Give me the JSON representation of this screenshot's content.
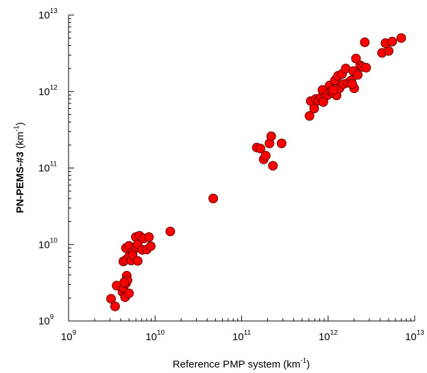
{
  "chart_data": {
    "type": "scatter",
    "title": "",
    "x_scale": "log",
    "y_scale": "log",
    "xlim": [
      1000000000.0,
      10000000000000.0
    ],
    "ylim": [
      1000000000.0,
      10000000000000.0
    ],
    "grid": false,
    "x_ticks": [
      {
        "base": "10",
        "exp": "9",
        "value": 1000000000.0
      },
      {
        "base": "10",
        "exp": "10",
        "value": 10000000000.0
      },
      {
        "base": "10",
        "exp": "11",
        "value": 100000000000.0
      },
      {
        "base": "10",
        "exp": "12",
        "value": 1000000000000.0
      },
      {
        "base": "10",
        "exp": "13",
        "value": 10000000000000.0
      }
    ],
    "y_ticks": [
      {
        "base": "10",
        "exp": "9",
        "value": 1000000000.0
      },
      {
        "base": "10",
        "exp": "10",
        "value": 10000000000.0
      },
      {
        "base": "10",
        "exp": "11",
        "value": 100000000000.0
      },
      {
        "base": "10",
        "exp": "12",
        "value": 1000000000000.0
      },
      {
        "base": "10",
        "exp": "13",
        "value": 10000000000000.0
      }
    ],
    "xlabel": {
      "text": "Reference PMP system (km",
      "sup": "-1",
      "suffix": ")"
    },
    "ylabel": {
      "text": "PN-PEMS-#3",
      "unit": " (km",
      "sup": "-1",
      "suffix": ")"
    },
    "series": [
      {
        "color": "#ff0000",
        "edge_color": "#5a0000",
        "points": [
          [
            3100000000.0,
            1950000000.0
          ],
          [
            3450000000.0,
            1550000000.0
          ],
          [
            3600000000.0,
            2900000000.0
          ],
          [
            4200000000.0,
            2400000000.0
          ],
          [
            4300000000.0,
            2700000000.0
          ],
          [
            4500000000.0,
            2050000000.0
          ],
          [
            4600000000.0,
            3100000000.0
          ],
          [
            4700000000.0,
            3900000000.0
          ],
          [
            4800000000.0,
            3400000000.0
          ],
          [
            5000000000.0,
            2300000000.0
          ],
          [
            4400000000.0,
            3200000000.0
          ],
          [
            4300000000.0,
            6000000000.0
          ],
          [
            4600000000.0,
            6300000000.0
          ],
          [
            4600000000.0,
            9000000000.0
          ],
          [
            5000000000.0,
            7000000000.0
          ],
          [
            5000000000.0,
            9600000000.0
          ],
          [
            5300000000.0,
            6200000000.0
          ],
          [
            5500000000.0,
            8000000000.0
          ],
          [
            5500000000.0,
            7200000000.0
          ],
          [
            6000000000.0,
            12500000000.0
          ],
          [
            6000000000.0,
            9200000000.0
          ],
          [
            6300000000.0,
            10000000000.0
          ],
          [
            6300000000.0,
            6100000000.0
          ],
          [
            6600000000.0,
            13000000000.0
          ],
          [
            7100000000.0,
            8500000000.0
          ],
          [
            7400000000.0,
            12000000000.0
          ],
          [
            8000000000.0,
            8600000000.0
          ],
          [
            8500000000.0,
            12500000000.0
          ],
          [
            8900000000.0,
            9500000000.0
          ],
          [
            15000000000.0,
            14800000000.0
          ],
          [
            47000000000.0,
            40000000000.0
          ],
          [
            150000000000.0,
            185000000000.0
          ],
          [
            165000000000.0,
            180000000000.0
          ],
          [
            180000000000.0,
            130000000000.0
          ],
          [
            190000000000.0,
            145000000000.0
          ],
          [
            210000000000.0,
            210000000000.0
          ],
          [
            220000000000.0,
            260000000000.0
          ],
          [
            230000000000.0,
            107000000000.0
          ],
          [
            290000000000.0,
            210000000000.0
          ],
          [
            610000000000.0,
            480000000000.0
          ],
          [
            630000000000.0,
            750000000000.0
          ],
          [
            690000000000.0,
            600000000000.0
          ],
          [
            720000000000.0,
            800000000000.0
          ],
          [
            770000000000.0,
            760000000000.0
          ],
          [
            820000000000.0,
            830000000000.0
          ],
          [
            860000000000.0,
            1050000000000.0
          ],
          [
            910000000000.0,
            850000000000.0
          ],
          [
            980000000000.0,
            900000000000.0
          ],
          [
            1040000000000.0,
            1200000000000.0
          ],
          [
            1080000000000.0,
            1000000000000.0
          ],
          [
            1150000000000.0,
            950000000000.0
          ],
          [
            1200000000000.0,
            1400000000000.0
          ],
          [
            1250000000000.0,
            890000000000.0
          ],
          [
            1300000000000.0,
            1600000000000.0
          ],
          [
            1350000000000.0,
            1100000000000.0
          ],
          [
            1450000000000.0,
            1700000000000.0
          ],
          [
            1500000000000.0,
            1250000000000.0
          ],
          [
            1600000000000.0,
            2000000000000.0
          ],
          [
            1700000000000.0,
            1300000000000.0
          ],
          [
            1850000000000.0,
            1400000000000.0
          ],
          [
            1950000000000.0,
            1850000000000.0
          ],
          [
            2000000000000.0,
            1100000000000.0
          ],
          [
            2100000000000.0,
            2700000000000.0
          ],
          [
            2200000000000.0,
            1650000000000.0
          ],
          [
            2350000000000.0,
            2200000000000.0
          ],
          [
            2500000000000.0,
            2100000000000.0
          ],
          [
            2650000000000.0,
            4400000000000.0
          ],
          [
            2750000000000.0,
            2050000000000.0
          ],
          [
            4200000000000.0,
            3200000000000.0
          ],
          [
            4600000000000.0,
            4300000000000.0
          ],
          [
            5000000000000.0,
            3400000000000.0
          ],
          [
            5500000000000.0,
            4500000000000.0
          ],
          [
            7000000000000.0,
            5000000000000.0
          ],
          [
            1150000000000.0,
            1050000000000.0
          ],
          [
            880000000000.0,
            730000000000.0
          ],
          [
            1900000000000.0,
            1250000000000.0
          ]
        ]
      }
    ]
  }
}
